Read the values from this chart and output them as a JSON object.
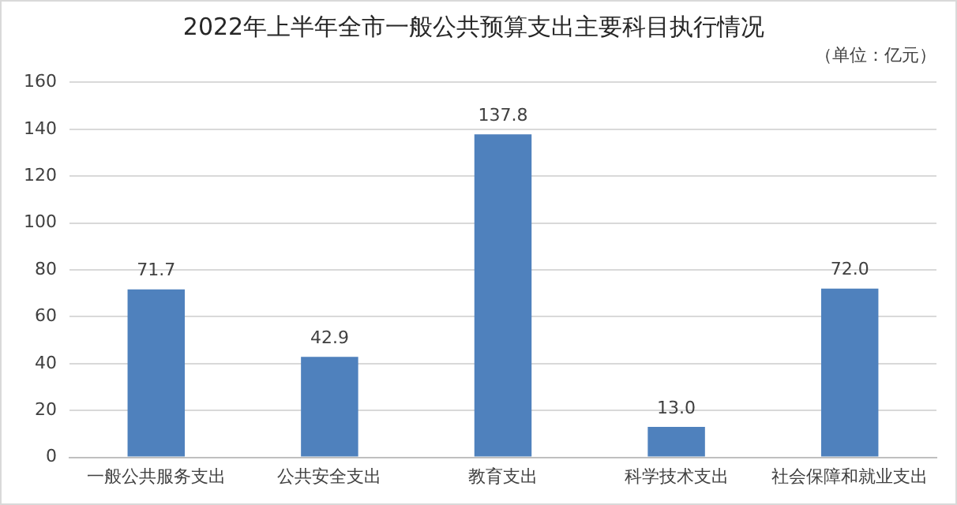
{
  "chart_data": {
    "type": "bar",
    "title": "2022年上半年全市一般公共预算支出主要科目执行情况",
    "subtitle": "（单位：亿元）",
    "categories": [
      "一般公共服务支出",
      "公共安全支出",
      "教育支出",
      "科学技术支出",
      "社会保障和就业支出"
    ],
    "values": [
      71.7,
      42.9,
      137.8,
      13.0,
      72.0
    ],
    "value_labels": [
      "71.7",
      "42.9",
      "137.8",
      "13.0",
      "72.0"
    ],
    "color": "#4f81bd",
    "ylim": [
      0,
      160
    ],
    "yticks": [
      0,
      20,
      40,
      60,
      80,
      100,
      120,
      140,
      160
    ],
    "grid": "y"
  }
}
